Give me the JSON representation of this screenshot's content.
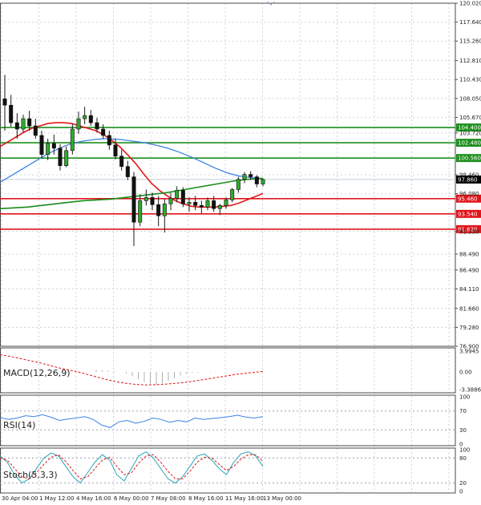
{
  "chart_data": {
    "type": "candlestick",
    "grid": true,
    "price_axis": {
      "ticks": [
        "120.020",
        "117.640",
        "115.260",
        "112.810",
        "110.430",
        "108.050",
        "105.670",
        "103.720",
        "98.460",
        "96.080",
        "91.330",
        "88.490",
        "86.490",
        "84.110",
        "81.660",
        "79.280",
        "76.900"
      ],
      "tick_values": [
        120.02,
        117.64,
        115.26,
        112.81,
        110.43,
        108.05,
        105.67,
        103.72,
        98.46,
        96.08,
        91.33,
        88.49,
        86.49,
        84.11,
        81.66,
        79.28,
        76.9
      ],
      "range": [
        76.9,
        120.02
      ]
    },
    "time_axis": {
      "labels": [
        "30 Apr 04:00",
        "1 May 12:00",
        "4 May 16:00",
        "6 May 00:00",
        "7 May 08:00",
        "8 May 16:00",
        "11 May 16:00",
        "13 May 00:00"
      ]
    },
    "current_price": {
      "label": "97.860",
      "value": 97.86,
      "color": "#000000"
    },
    "levels": [
      {
        "label": "104.400",
        "value": 104.4,
        "color": "#1e8f1e"
      },
      {
        "label": "102.480",
        "value": 102.48,
        "color": "#1e8f1e"
      },
      {
        "label": "100.560",
        "value": 100.56,
        "color": "#1e8f1e"
      },
      {
        "label": "95.460",
        "value": 95.46,
        "color": "#e0151b"
      },
      {
        "label": "93.540",
        "value": 93.54,
        "color": "#e0151b"
      },
      {
        "label": "91.620",
        "value": 91.62,
        "color": "#e0151b"
      }
    ],
    "candles": [
      {
        "o": 108.0,
        "h": 111.0,
        "l": 104.0,
        "c": 107.2
      },
      {
        "o": 107.2,
        "h": 108.5,
        "l": 104.5,
        "c": 105.0
      },
      {
        "o": 105.0,
        "h": 106.2,
        "l": 103.0,
        "c": 104.2
      },
      {
        "o": 104.2,
        "h": 106.0,
        "l": 103.8,
        "c": 105.5
      },
      {
        "o": 105.5,
        "h": 106.5,
        "l": 104.0,
        "c": 104.6
      },
      {
        "o": 104.6,
        "h": 105.5,
        "l": 103.0,
        "c": 103.4
      },
      {
        "o": 103.4,
        "h": 104.0,
        "l": 100.5,
        "c": 101.0
      },
      {
        "o": 101.0,
        "h": 103.0,
        "l": 100.3,
        "c": 102.4
      },
      {
        "o": 102.4,
        "h": 103.5,
        "l": 101.0,
        "c": 101.8
      },
      {
        "o": 101.8,
        "h": 102.3,
        "l": 99.0,
        "c": 99.6
      },
      {
        "o": 99.6,
        "h": 102.0,
        "l": 99.4,
        "c": 101.5
      },
      {
        "o": 101.5,
        "h": 104.8,
        "l": 101.0,
        "c": 104.2
      },
      {
        "o": 104.2,
        "h": 106.4,
        "l": 103.6,
        "c": 105.5
      },
      {
        "o": 105.5,
        "h": 107.0,
        "l": 104.8,
        "c": 105.9
      },
      {
        "o": 105.9,
        "h": 106.6,
        "l": 104.6,
        "c": 105.0
      },
      {
        "o": 105.0,
        "h": 105.6,
        "l": 103.8,
        "c": 104.2
      },
      {
        "o": 104.2,
        "h": 104.8,
        "l": 103.0,
        "c": 103.4
      },
      {
        "o": 103.4,
        "h": 104.0,
        "l": 101.6,
        "c": 102.2
      },
      {
        "o": 102.2,
        "h": 103.0,
        "l": 100.4,
        "c": 100.8
      },
      {
        "o": 100.8,
        "h": 101.6,
        "l": 99.0,
        "c": 99.5
      },
      {
        "o": 99.5,
        "h": 100.2,
        "l": 97.8,
        "c": 98.2
      },
      {
        "o": 98.2,
        "h": 98.8,
        "l": 89.5,
        "c": 92.5
      },
      {
        "o": 92.5,
        "h": 96.0,
        "l": 92.0,
        "c": 95.2
      },
      {
        "o": 95.2,
        "h": 96.6,
        "l": 94.6,
        "c": 95.6
      },
      {
        "o": 95.6,
        "h": 96.2,
        "l": 94.0,
        "c": 94.7
      },
      {
        "o": 94.7,
        "h": 95.8,
        "l": 92.0,
        "c": 93.3
      },
      {
        "o": 93.3,
        "h": 95.4,
        "l": 91.2,
        "c": 94.8
      },
      {
        "o": 94.8,
        "h": 96.2,
        "l": 94.0,
        "c": 95.5
      },
      {
        "o": 95.5,
        "h": 97.0,
        "l": 95.0,
        "c": 96.5
      },
      {
        "o": 96.5,
        "h": 96.9,
        "l": 94.4,
        "c": 94.8
      },
      {
        "o": 94.8,
        "h": 95.6,
        "l": 93.8,
        "c": 95.0
      },
      {
        "o": 95.0,
        "h": 95.8,
        "l": 94.0,
        "c": 94.6
      },
      {
        "o": 94.6,
        "h": 95.2,
        "l": 93.6,
        "c": 94.4
      },
      {
        "o": 94.4,
        "h": 95.6,
        "l": 94.0,
        "c": 95.2
      },
      {
        "o": 95.2,
        "h": 95.8,
        "l": 93.8,
        "c": 94.2
      },
      {
        "o": 94.2,
        "h": 94.8,
        "l": 93.4,
        "c": 94.6
      },
      {
        "o": 94.6,
        "h": 95.6,
        "l": 94.2,
        "c": 95.3
      },
      {
        "o": 95.3,
        "h": 96.8,
        "l": 95.0,
        "c": 96.6
      },
      {
        "o": 96.6,
        "h": 98.2,
        "l": 96.2,
        "c": 97.9
      },
      {
        "o": 97.9,
        "h": 98.8,
        "l": 97.4,
        "c": 98.5
      },
      {
        "o": 98.5,
        "h": 98.9,
        "l": 97.8,
        "c": 98.2
      },
      {
        "o": 98.2,
        "h": 98.4,
        "l": 96.9,
        "c": 97.3
      },
      {
        "o": 97.3,
        "h": 98.0,
        "l": 97.0,
        "c": 97.86
      }
    ],
    "ma_red": [
      102,
      102.6,
      103.2,
      103.8,
      104.3,
      104.6,
      104.9,
      105,
      105,
      104.9,
      104.6,
      104.3,
      104,
      103.5,
      102.8,
      102,
      101,
      99.9,
      98.6,
      97.4,
      96.5,
      95.8,
      95.2,
      94.8,
      94.5,
      94.4,
      94.4,
      94.4,
      94.5,
      94.6,
      94.9,
      95.3,
      95.7,
      96.1
    ],
    "ma_blue": [
      97.5,
      98.4,
      99.3,
      100.2,
      101.1,
      101.8,
      102.4,
      102.7,
      102.9,
      103,
      102.9,
      102.7,
      102.5,
      102.2,
      101.8,
      101.3,
      100.7,
      100,
      99.3,
      98.7,
      98.3,
      98.1,
      98
    ],
    "ma_green": [
      94.2,
      94.3,
      94.4,
      94.6,
      94.8,
      95,
      95.2,
      95.3,
      95.4,
      95.6,
      95.8,
      96,
      96.2,
      96.5,
      96.8,
      97.1,
      97.4,
      97.7,
      97.9,
      98
    ],
    "macd": {
      "label": "MACD(12,26,9)",
      "ticks": [
        "3.9945",
        "0.00",
        "-3.3886"
      ],
      "tick_values": [
        3.9945,
        0,
        -3.3886
      ],
      "signal": [
        3.3,
        3.0,
        2.6,
        2.2,
        1.8,
        1.3,
        0.8,
        0.4,
        0.0,
        -0.5,
        -1.0,
        -1.5,
        -1.9,
        -2.2,
        -2.4,
        -2.5,
        -2.45,
        -2.35,
        -2.2,
        -2.0,
        -1.75,
        -1.45,
        -1.15,
        -0.85,
        -0.55,
        -0.3,
        -0.1,
        0.1
      ],
      "histogram": [
        0.4,
        0.3,
        0.2,
        0.1,
        0.0,
        -0.3,
        -0.8,
        -1.4,
        -1.9,
        -2.3,
        -2.5,
        -2.2,
        -1.7,
        -1.2,
        -0.7,
        -0.4,
        -0.2,
        -0.1,
        0.05,
        0.1
      ]
    },
    "rsi": {
      "label": "RSI(14)",
      "ticks": [
        "100",
        "70",
        "30",
        "0"
      ],
      "tick_values": [
        100,
        70,
        30,
        0
      ],
      "values": [
        56,
        52,
        55,
        60,
        58,
        62,
        57,
        50,
        53,
        55,
        58,
        52,
        40,
        35,
        47,
        50,
        44,
        48,
        55,
        52,
        46,
        50,
        47,
        55,
        52,
        54,
        56,
        58,
        61,
        57,
        55,
        58
      ]
    },
    "stoch": {
      "label": "Stoch(5,3,3)",
      "ticks": [
        "100",
        "80",
        "20",
        "0"
      ],
      "tick_values": [
        100,
        80,
        20,
        0
      ],
      "k": [
        85,
        70,
        40,
        20,
        30,
        55,
        80,
        92,
        85,
        60,
        35,
        20,
        45,
        70,
        88,
        75,
        40,
        25,
        55,
        85,
        95,
        80,
        55,
        30,
        20,
        35,
        60,
        85,
        90,
        75,
        55,
        40,
        70,
        90,
        95,
        85,
        60
      ],
      "d": [
        80,
        75,
        55,
        35,
        30,
        45,
        65,
        82,
        88,
        72,
        50,
        30,
        35,
        55,
        75,
        82,
        60,
        40,
        45,
        68,
        85,
        88,
        70,
        48,
        30,
        30,
        48,
        70,
        82,
        80,
        65,
        50,
        60,
        78,
        88,
        88,
        72
      ]
    }
  }
}
